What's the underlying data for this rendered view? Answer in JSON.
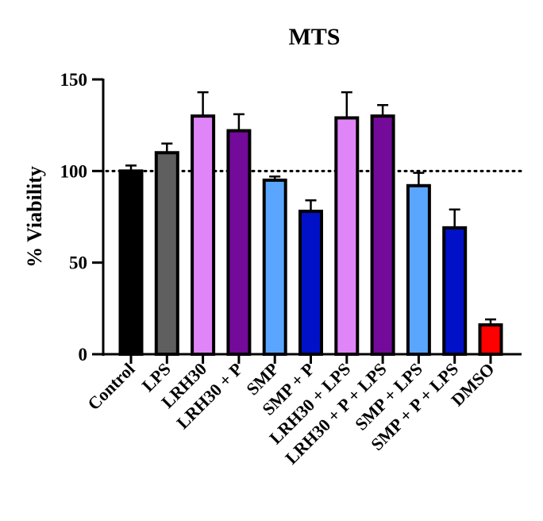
{
  "chart_data": {
    "type": "bar",
    "title": "MTS",
    "xlabel": "",
    "ylabel": "% Viability",
    "ylim": [
      0,
      150
    ],
    "yticks": [
      0,
      50,
      100,
      150
    ],
    "reference_line": 100,
    "grid": false,
    "categories": [
      "Control",
      "LPS",
      "LRH30",
      "LRH30 + P",
      "SMP",
      "SMP + P",
      "LRH30 + LPS",
      "LRH30 + P + LPS",
      "SMP + LPS",
      "SMP + P + LPS",
      "DMSO"
    ],
    "values": [
      100,
      110,
      130,
      122,
      95,
      78,
      129,
      130,
      92,
      69,
      16
    ],
    "errors": [
      3,
      5,
      13,
      9,
      2,
      6,
      14,
      6,
      7,
      10,
      3
    ],
    "colors": [
      "#000000",
      "#5f5f5f",
      "#e085f7",
      "#740a9a",
      "#5aa6ff",
      "#0011c7",
      "#e085f7",
      "#740a9a",
      "#5aa6ff",
      "#0011c7",
      "#ff0000"
    ]
  }
}
